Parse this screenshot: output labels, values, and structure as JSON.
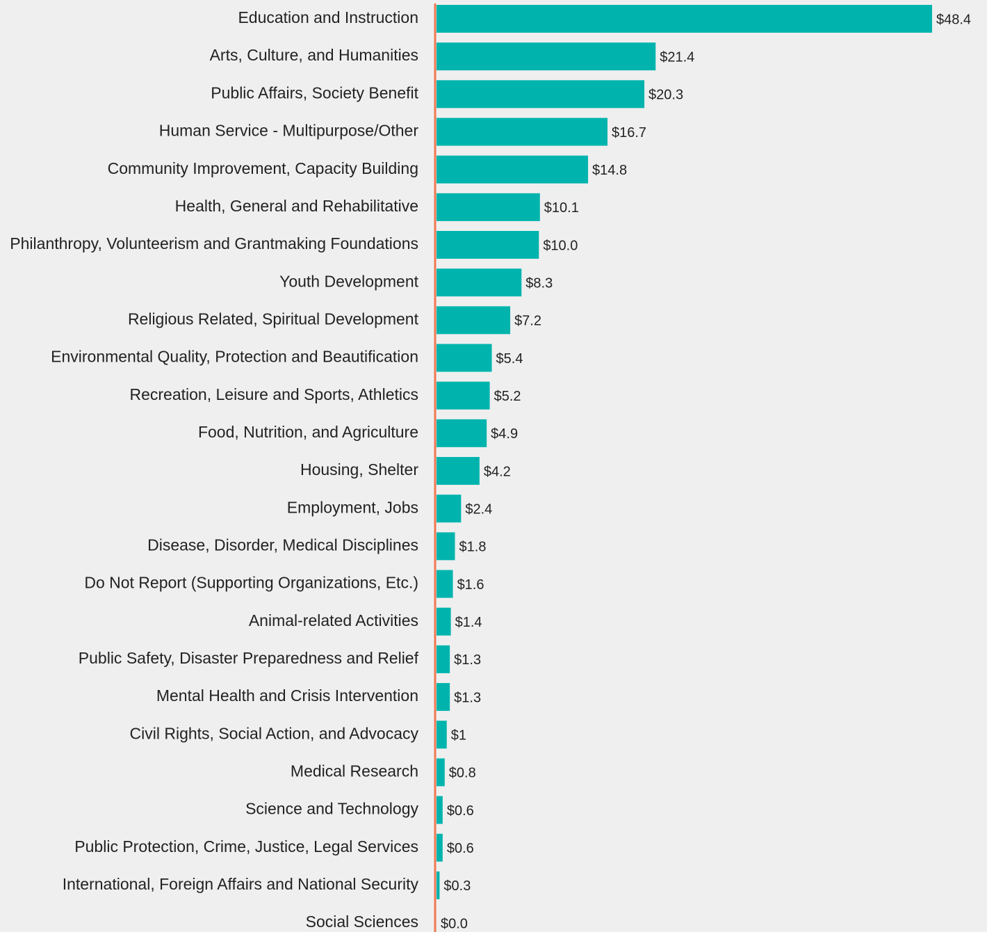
{
  "chart_data": {
    "type": "bar",
    "orientation": "horizontal",
    "categories": [
      "Education and Instruction",
      "Arts, Culture, and Humanities",
      "Public Affairs, Society Benefit",
      "Human Service - Multipurpose/Other",
      "Community Improvement, Capacity Building",
      "Health, General and Rehabilitative",
      "Philanthropy, Volunteerism and Grantmaking Foundations",
      "Youth Development",
      "Religious Related, Spiritual Development",
      "Environmental Quality, Protection and Beautification",
      "Recreation, Leisure and Sports, Athletics",
      "Food, Nutrition, and Agriculture",
      "Housing, Shelter",
      "Employment, Jobs",
      "Disease, Disorder, Medical Disciplines",
      "Do Not Report (Supporting Organizations, Etc.)",
      "Animal-related Activities",
      "Public Safety, Disaster Preparedness and Relief",
      "Mental Health and Crisis Intervention",
      "Civil Rights, Social Action, and Advocacy",
      "Medical Research",
      "Science and Technology",
      "Public Protection, Crime, Justice, Legal Services",
      "International, Foreign Affairs and National Security",
      "Social Sciences"
    ],
    "values": [
      48.4,
      21.4,
      20.3,
      16.7,
      14.8,
      10.1,
      10.0,
      8.3,
      7.2,
      5.4,
      5.2,
      4.9,
      4.2,
      2.4,
      1.8,
      1.6,
      1.4,
      1.3,
      1.3,
      1,
      0.8,
      0.6,
      0.6,
      0.3,
      0.0
    ],
    "value_labels": [
      "$48.4",
      "$21.4",
      "$20.3",
      "$16.7",
      "$14.8",
      "$10.1",
      "$10.0",
      "$8.3",
      "$7.2",
      "$5.4",
      "$5.2",
      "$4.9",
      "$4.2",
      "$2.4",
      "$1.8",
      "$1.6",
      "$1.4",
      "$1.3",
      "$1.3",
      "$1",
      "$0.8",
      "$0.6",
      "$0.6",
      "$0.3",
      "$0.0"
    ],
    "color": "#00b4ad",
    "axis_color": "#f07850"
  }
}
